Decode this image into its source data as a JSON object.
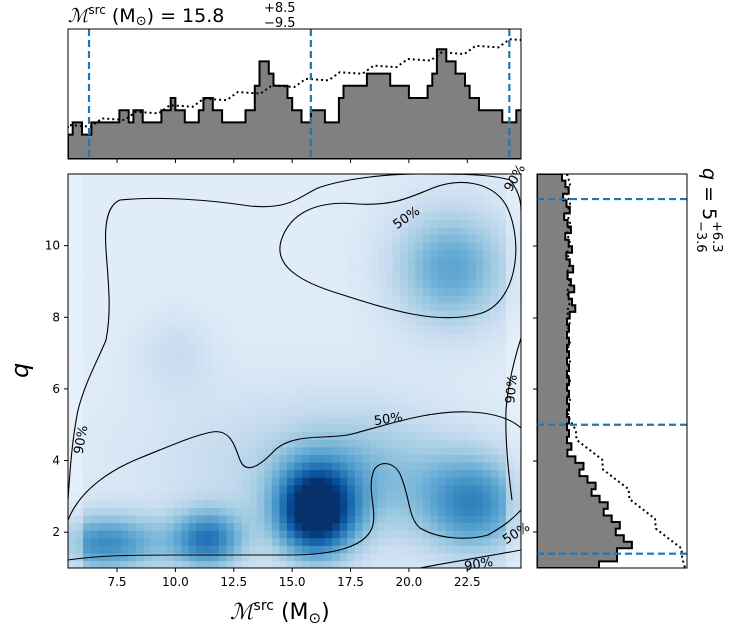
{
  "chart_data": [
    {
      "type": "heatmap",
      "panel": "joint",
      "xlabel": "ℳ^src (M⊙)",
      "ylabel": "q",
      "xlim": [
        5.4,
        24.8
      ],
      "ylim": [
        1.0,
        12.0
      ],
      "xticks": [
        "7.5",
        "10.0",
        "12.5",
        "15.0",
        "17.5",
        "20.0",
        "22.5"
      ],
      "yticks": [
        "2",
        "4",
        "6",
        "8",
        "10"
      ],
      "colormap": "Blues",
      "contour_levels": [
        "50%",
        "90%"
      ],
      "density_blobs": [
        {
          "x": 16.0,
          "y": 2.6,
          "sx": 1.2,
          "sy": 0.9,
          "w": 1.0
        },
        {
          "x": 7.0,
          "y": 1.7,
          "sx": 1.8,
          "sy": 0.6,
          "w": 0.55
        },
        {
          "x": 11.4,
          "y": 1.8,
          "sx": 1.1,
          "sy": 0.6,
          "w": 0.6
        },
        {
          "x": 22.8,
          "y": 2.8,
          "sx": 1.6,
          "sy": 1.0,
          "w": 0.55
        },
        {
          "x": 21.8,
          "y": 9.4,
          "sx": 1.8,
          "sy": 1.2,
          "w": 0.45
        },
        {
          "x": 18.5,
          "y": 3.6,
          "sx": 2.5,
          "sy": 1.3,
          "w": 0.25
        },
        {
          "x": 10.0,
          "y": 7.0,
          "sx": 1.2,
          "sy": 0.8,
          "w": 0.12
        },
        {
          "x": 14.0,
          "y": 4.0,
          "sx": 4.0,
          "sy": 1.5,
          "w": 0.15
        }
      ]
    },
    {
      "type": "bar",
      "panel": "top-marginal",
      "title": "ℳ^src (M⊙) = 15.8 +8.5 −9.5",
      "title_main": "15.8",
      "title_plus": "+8.5",
      "title_minus": "−9.5",
      "xlim": [
        5.4,
        24.8
      ],
      "bins_start": 5.4,
      "bin_width": 0.4,
      "posterior_density": [
        2,
        3,
        3,
        2,
        2,
        3,
        3,
        3,
        3,
        3,
        3,
        4,
        4,
        3,
        4,
        4,
        3,
        3,
        3,
        3,
        4,
        4,
        5,
        4,
        4,
        3,
        3,
        3,
        4,
        5,
        5,
        4,
        4,
        3,
        3,
        3,
        3,
        3,
        4,
        4,
        6,
        8,
        8,
        7,
        6,
        6,
        6,
        5,
        4,
        4,
        3,
        3,
        4,
        4,
        4,
        3,
        3,
        3,
        5,
        6,
        6,
        6,
        6,
        6,
        7,
        7,
        7,
        7,
        7,
        6,
        6,
        6,
        6,
        5,
        5,
        5,
        5,
        6,
        7,
        9,
        9,
        8,
        8,
        7,
        7,
        6,
        5,
        5,
        4,
        4,
        4,
        4,
        4,
        3,
        3,
        3,
        4,
        4,
        5,
        5,
        6,
        6,
        6,
        6,
        6,
        5,
        5,
        5,
        5,
        5,
        5,
        5,
        6,
        6,
        6,
        6,
        6,
        7,
        7,
        7,
        7,
        8,
        8,
        8,
        8,
        9,
        8,
        8,
        9,
        9,
        9,
        8,
        8,
        8,
        9,
        9,
        9,
        8,
        8,
        8,
        8,
        8,
        9,
        9,
        9,
        8,
        7,
        6,
        6,
        8,
        9,
        10,
        9,
        8,
        7,
        7,
        6,
        6,
        6,
        6,
        6,
        7,
        7,
        8,
        8,
        8,
        8,
        8,
        8,
        8
      ],
      "prior_dotted": true,
      "credible_lines": [
        6.3,
        15.8,
        24.3
      ]
    },
    {
      "type": "bar",
      "panel": "right-marginal",
      "title": "q = 5 +6.3 −3.6",
      "title_main": "5",
      "title_plus": "+6.3",
      "title_minus": "−3.6",
      "ylim": [
        1.0,
        12.0
      ],
      "credible_lines": [
        1.4,
        5.0,
        11.3
      ],
      "prior_dotted": true
    }
  ]
}
